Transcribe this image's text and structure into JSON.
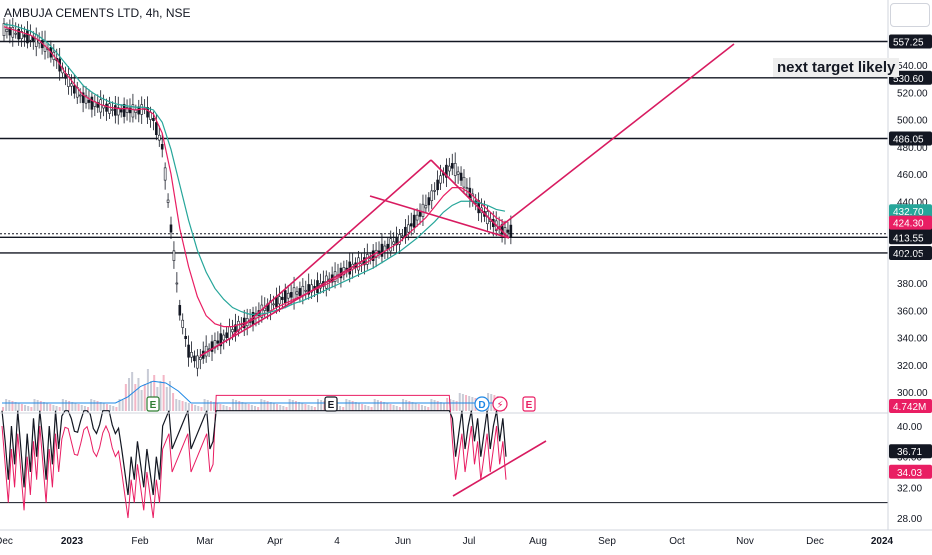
{
  "header": {
    "title": "AMBUJA CEMENTS LTD, 4h, NSE"
  },
  "annotation": {
    "note": "next target likely"
  },
  "chart_data": [
    {
      "type": "line",
      "title": "AMBUJA CEMENTS LTD, 4h, NSE",
      "x_labels": [
        "Dec",
        "2023",
        "Feb",
        "Mar",
        "Apr",
        "4",
        "Jun",
        "Jul",
        "Aug",
        "Sep",
        "Oct",
        "Nov",
        "Dec",
        "2024"
      ],
      "y_ticks": [
        300,
        320,
        340,
        360,
        380,
        400,
        420,
        440,
        460,
        480,
        500,
        520,
        540
      ],
      "ylim": [
        290,
        570
      ],
      "horizontal_levels": [
        {
          "value": 557.25,
          "label": "557.25"
        },
        {
          "value": 530.6,
          "label": "530.60"
        },
        {
          "value": 486.05,
          "label": "486.05"
        },
        {
          "value": 416.15,
          "label": "416.15",
          "style": "dotted"
        },
        {
          "value": 413.55,
          "label": "413.55"
        },
        {
          "value": 402.05,
          "label": "402.05"
        }
      ],
      "price_badges": [
        {
          "value": 432.7,
          "label": "432.70",
          "color": "#26a69a"
        },
        {
          "value": 424.3,
          "label": "424.30",
          "color": "#e91e63"
        }
      ],
      "volume_badge": {
        "label": "4.742M",
        "color": "#e91e63"
      },
      "series": [
        {
          "values": [
            566,
            564,
            562,
            560,
            557,
            552,
            544,
            532,
            522,
            516,
            512,
            510,
            508,
            506,
            507,
            506,
            508,
            500,
            480,
            420,
            360,
            330,
            322,
            330,
            335,
            340,
            345,
            350,
            352,
            358,
            362,
            366,
            370,
            372,
            374,
            376,
            378,
            382,
            386,
            390,
            393,
            396,
            400,
            404,
            408,
            412,
            420,
            428,
            436,
            448,
            460,
            466,
            458,
            446,
            436,
            428,
            422,
            418
          ],
          "color": "#131722"
        },
        {
          "values": [
            568,
            566,
            564,
            562,
            558,
            552,
            544,
            534,
            526,
            518,
            514,
            511,
            509,
            508,
            508,
            507,
            508,
            504,
            490,
            460,
            420,
            392,
            370,
            356,
            350,
            348,
            348,
            350,
            352,
            355,
            358,
            362,
            365,
            368,
            371,
            374,
            377,
            380,
            384,
            388,
            391,
            394,
            398,
            402,
            406,
            410,
            416,
            422,
            428,
            436,
            444,
            450,
            450,
            446,
            440,
            434,
            428,
            424
          ],
          "color": "#e91e63"
        },
        {
          "values": [
            570,
            569,
            567,
            565,
            561,
            556,
            549,
            541,
            533,
            525,
            520,
            516,
            513,
            511,
            510,
            509,
            509,
            507,
            498,
            478,
            452,
            426,
            404,
            388,
            376,
            368,
            362,
            359,
            357,
            357,
            358,
            360,
            362,
            365,
            367,
            370,
            373,
            376,
            379,
            382,
            385,
            388,
            391,
            395,
            399,
            403,
            408,
            413,
            419,
            425,
            432,
            437,
            440,
            440,
            439,
            437,
            434,
            432.7
          ],
          "color": "#26a69a"
        }
      ],
      "event_markers": [
        {
          "text": "E",
          "color": "#2e7d32"
        },
        {
          "text": "E",
          "color": "#131722"
        },
        {
          "text": "D",
          "color": "#1e88e5"
        },
        {
          "text": "⚡",
          "color": "#e91e63"
        },
        {
          "text": "E",
          "color": "#e91e63"
        }
      ]
    },
    {
      "type": "line",
      "y_ticks": [
        28.0,
        32.0,
        36.0,
        40.0
      ],
      "ylim": [
        26,
        42
      ],
      "badges": [
        {
          "value": 36.71,
          "label": "36.71",
          "color": "#131722"
        },
        {
          "value": 34.03,
          "label": "34.03",
          "color": "#e91e63"
        }
      ],
      "level": 30
    }
  ]
}
